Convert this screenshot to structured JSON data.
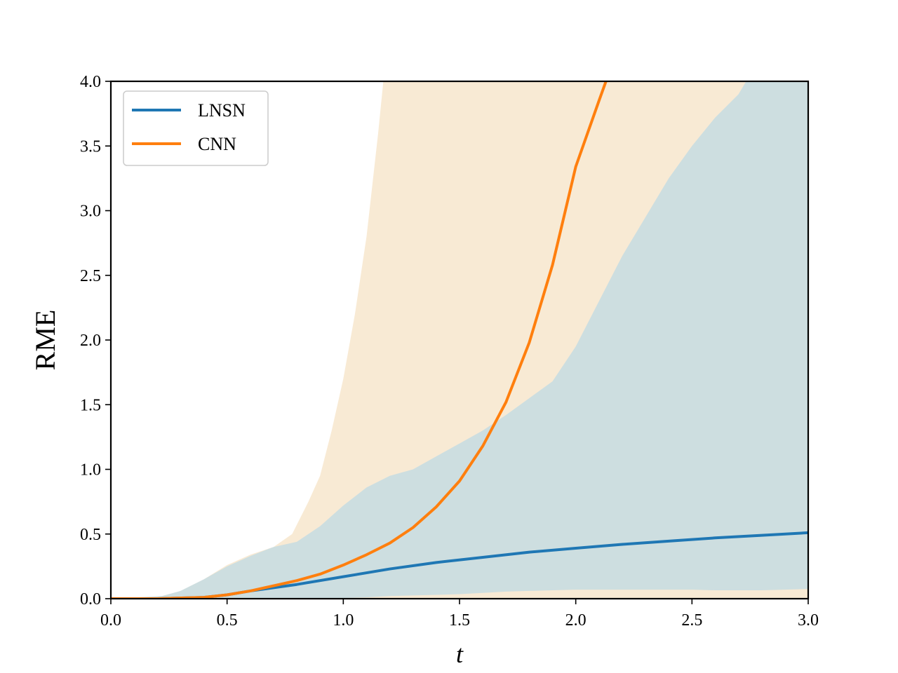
{
  "chart_data": {
    "type": "line",
    "xlabel": "t",
    "ylabel": "RME",
    "xlim": [
      0.0,
      3.0
    ],
    "ylim": [
      0.0,
      4.0
    ],
    "xticks": [
      "0.0",
      "0.5",
      "1.0",
      "1.5",
      "2.0",
      "2.5",
      "3.0"
    ],
    "yticks": [
      "0.0",
      "0.5",
      "1.0",
      "1.5",
      "2.0",
      "2.5",
      "3.0",
      "3.5",
      "4.0"
    ],
    "grid": false,
    "legend_position": "top-left",
    "series": [
      {
        "name": "LNSN",
        "color": "#1f77b4",
        "band_color": "#a9d4ea",
        "mean": {
          "x": [
            0.0,
            0.2,
            0.4,
            0.5,
            0.6,
            0.8,
            1.0,
            1.2,
            1.4,
            1.6,
            1.8,
            2.0,
            2.2,
            2.4,
            2.6,
            2.8,
            3.0
          ],
          "y": [
            0.0,
            0.0,
            0.01,
            0.03,
            0.06,
            0.11,
            0.17,
            0.23,
            0.28,
            0.32,
            0.36,
            0.39,
            0.42,
            0.445,
            0.47,
            0.49,
            0.51
          ]
        },
        "band": {
          "x": [
            0.0,
            0.22,
            0.3,
            0.4,
            0.5,
            0.6,
            0.7,
            0.8,
            0.9,
            1.0,
            1.1,
            1.2,
            1.3,
            1.4,
            1.5,
            1.6,
            1.7,
            1.8,
            1.9,
            2.0,
            2.1,
            2.2,
            2.3,
            2.4,
            2.5,
            2.6,
            2.7,
            2.8,
            2.9,
            3.0
          ],
          "lower": [
            0.0,
            0.0,
            0.0,
            0.0,
            0.0,
            0.0,
            0.0,
            0.0,
            0.0,
            0.005,
            0.01,
            0.02,
            0.025,
            0.03,
            0.035,
            0.045,
            0.055,
            0.06,
            0.065,
            0.07,
            0.07,
            0.07,
            0.07,
            0.07,
            0.07,
            0.065,
            0.065,
            0.065,
            0.07,
            0.075
          ],
          "upper": [
            0.0,
            0.02,
            0.06,
            0.15,
            0.25,
            0.33,
            0.4,
            0.44,
            0.56,
            0.72,
            0.86,
            0.95,
            1.0,
            1.1,
            1.2,
            1.3,
            1.42,
            1.55,
            1.68,
            1.95,
            2.3,
            2.65,
            2.95,
            3.25,
            3.5,
            3.72,
            3.9,
            4.2,
            4.6,
            4.9
          ]
        }
      },
      {
        "name": "CNN",
        "color": "#ff7f0e",
        "band_color": "#f7e6cc",
        "mean": {
          "x": [
            0.0,
            0.2,
            0.4,
            0.5,
            0.6,
            0.7,
            0.8,
            0.9,
            1.0,
            1.1,
            1.2,
            1.3,
            1.4,
            1.5,
            1.6,
            1.7,
            1.8,
            1.9,
            2.0,
            2.1,
            2.14
          ],
          "y": [
            0.0,
            0.0,
            0.01,
            0.03,
            0.06,
            0.1,
            0.14,
            0.19,
            0.26,
            0.34,
            0.43,
            0.55,
            0.71,
            0.91,
            1.18,
            1.52,
            1.98,
            2.58,
            3.34,
            3.85,
            4.05
          ]
        },
        "band": {
          "x": [
            0.0,
            0.22,
            0.3,
            0.4,
            0.5,
            0.6,
            0.7,
            0.78,
            0.85,
            0.9,
            0.95,
            1.0,
            1.05,
            1.1,
            1.15,
            1.2,
            1.3,
            1.5,
            2.0,
            2.5,
            3.0
          ],
          "lower": [
            0.0,
            0.0,
            0.0,
            0.0,
            0.0,
            0.0,
            0.0,
            0.0,
            0.0,
            0.0,
            0.0,
            0.0,
            0.0,
            0.0,
            0.0,
            0.0,
            0.0,
            0.0,
            0.0,
            0.0,
            0.0
          ],
          "upper": [
            0.0,
            0.02,
            0.06,
            0.15,
            0.26,
            0.34,
            0.4,
            0.5,
            0.75,
            0.95,
            1.3,
            1.7,
            2.2,
            2.8,
            3.6,
            4.5,
            6.0,
            8.0,
            10.0,
            12.0,
            14.0
          ]
        }
      }
    ]
  }
}
